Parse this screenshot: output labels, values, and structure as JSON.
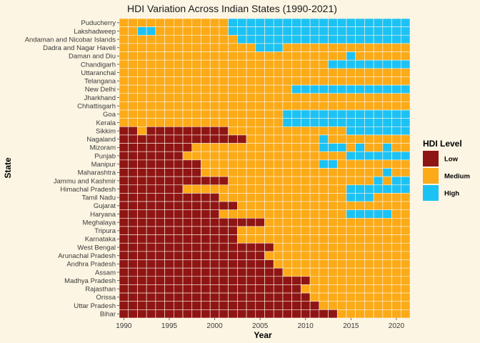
{
  "chart_data": {
    "type": "heatmap",
    "title": "HDI Variation Across Indian States (1990-2021)",
    "xlabel": "Year",
    "ylabel": "State",
    "x_range": [
      1990,
      2021
    ],
    "x_ticks": [
      1990,
      1995,
      2000,
      2005,
      2010,
      2015,
      2020
    ],
    "grid": false,
    "legend": {
      "title": "HDI Level",
      "placement": "right",
      "entries": [
        {
          "key": "L",
          "label": "Low",
          "color": "#8f1515"
        },
        {
          "key": "M",
          "label": "Medium",
          "color": "#fcaa18"
        },
        {
          "key": "H",
          "label": "High",
          "color": "#1dc2f4"
        }
      ]
    },
    "states": [
      {
        "name": "Puducherry",
        "levels": "MMMMMMMMMMMMHHHHHHHHHHHHHHHHHHHH"
      },
      {
        "name": "Lakshadweep",
        "levels": "MMHHMMMMMMMMHHHHHHHHHHHHHHHHHHHH"
      },
      {
        "name": "Andaman and Nicobar Islands",
        "levels": "MMMMMMMMMMMMMHHHHHHHHHHHHHHHHHHH"
      },
      {
        "name": "Dadra and Nagar Haveli",
        "levels": "MMMMMMMMMMMMMMMHHHMMMMMMMMMMMMMM"
      },
      {
        "name": "Daman and Diu",
        "levels": "MMMMMMMMMMMMMMMMMMMMMMMMMHMMMMMM"
      },
      {
        "name": "Chandigarh",
        "levels": "MMMMMMMMMMMMMMMMMMMMMMMHHHHHHHHH"
      },
      {
        "name": "Uttaranchal",
        "levels": "MMMMMMMMMMMMMMMMMMMMMMMMMMMMMMMM"
      },
      {
        "name": "Telangana",
        "levels": "MMMMMMMMMMMMMMMMMMMMMMMMMMMMMMMM"
      },
      {
        "name": "New Delhi",
        "levels": "MMMMMMMMMMMMMMMMMMMHHHHHHHHHHHHH"
      },
      {
        "name": "Jharkhand",
        "levels": "MMMMMMMMMMMMMMMMMMMMMMMMMMMMMMMM"
      },
      {
        "name": "Chhattisgarh",
        "levels": "MMMMMMMMMMMMMMMMMMMMMMMMMMMMMMMM"
      },
      {
        "name": "Goa",
        "levels": "MMMMMMMMMMMMMMMMMMHHHHHHHHHHHHHH"
      },
      {
        "name": "Kerala",
        "levels": "MMMMMMMMMMMMMMMMMMHHHHHHHHHHHHHH"
      },
      {
        "name": "Sikkim",
        "levels": "LLMLLLLLLLLLMMMMMMMMMMMMMHHHHHHH"
      },
      {
        "name": "Nagaland",
        "levels": "LLLLLLLLLLLLLLMMMMMMMMHMMMMMMMMM"
      },
      {
        "name": "Mizoram",
        "levels": "LLLLLLLLMMMMMMMMMMMMMMHHHMHMMHMM"
      },
      {
        "name": "Punjab",
        "levels": "LLLLLLLMMMMMMMMMMMMMMMMMMHHHHHHH"
      },
      {
        "name": "Manipur",
        "levels": "LLLLLLLLLMMMMMMMMMMMMMHHMMMMMMMM"
      },
      {
        "name": "Maharashtra",
        "levels": "LLLLLLLLLMMMMMMMMMMMMMMMMMMMMHMM"
      },
      {
        "name": "Jammu and Kashmir",
        "levels": "LLLLLLLLLLLLMMMMMMMMMMMMMMMMHMHH"
      },
      {
        "name": "Himachal Pradesh",
        "levels": "LLLLLLLMMMMMMMMMMMMMMMMMMHHHHHHH"
      },
      {
        "name": "Tamil Nadu",
        "levels": "LLLLLLLLLLLMMMMMMMMMMMMMMHHHMMMM"
      },
      {
        "name": "Gujarat",
        "levels": "LLLLLLLLLLLLLMMMMMMMMMMMMMMMMMMM"
      },
      {
        "name": "Haryana",
        "levels": "LLLLLLLLLLLMMMMMMMMMMMMMMHHHHHMM"
      },
      {
        "name": "Meghalaya",
        "levels": "LLLLLLLLLLLLLLLLMMMMMMMMMMMMMMMM"
      },
      {
        "name": "Tripura",
        "levels": "LLLLLLLLLLLLLMMMMMMMMMMMMMMMMMMM"
      },
      {
        "name": "Karnataka",
        "levels": "LLLLLLLLLLLLLMMMMMMMMMMMMMMMMMMM"
      },
      {
        "name": "West Bengal",
        "levels": "LLLLLLLLLLLLLLLLLMMMMMMMMMMMMMMM"
      },
      {
        "name": "Arunachal Pradesh",
        "levels": "LLLLLLLLLLLLLLLLMMMMMMMMMMMMMMMM"
      },
      {
        "name": "Andhra Pradesh",
        "levels": "LLLLLLLLLLLLLLLLLMMMMMMMMMMMMMMM"
      },
      {
        "name": "Assam",
        "levels": "LLLLLLLLLLLLLLLLLLMMMMMMMMMMMMMM"
      },
      {
        "name": "Madhya Pradesh",
        "levels": "LLLLLLLLLLLLLLLLLLLLLMMMMMMMMMMM"
      },
      {
        "name": "Rajasthan",
        "levels": "LLLLLLLLLLLLLLLLLLLLMMMMMMMMMMMM"
      },
      {
        "name": "Orissa",
        "levels": "LLLLLLLLLLLLLLLLLLLLLMMMMMMMMMMM"
      },
      {
        "name": "Uttar Pradesh",
        "levels": "LLLLLLLLLLLLLLLLLLLLLLMMMMMMMMMM"
      },
      {
        "name": "Bihar",
        "levels": "LLLLLLLLLLLLLLLLLLLLLLLLMMMMMMMM"
      }
    ]
  }
}
